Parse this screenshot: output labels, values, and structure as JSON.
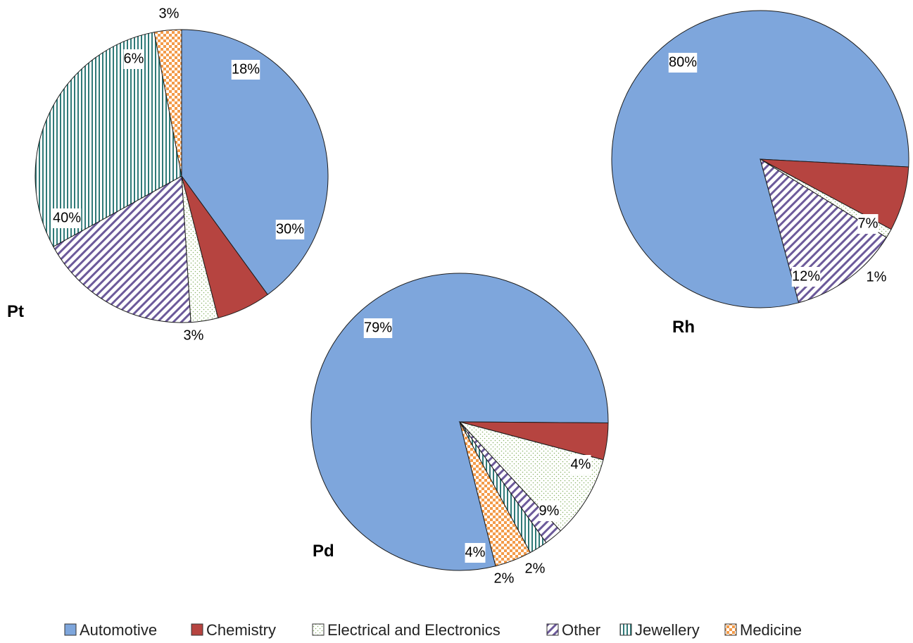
{
  "chart_data": [
    {
      "type": "pie",
      "title": "Pt",
      "slices": [
        {
          "category": "Automotive",
          "value": 40,
          "label": "40%"
        },
        {
          "category": "Chemistry",
          "value": 6,
          "label": "6%"
        },
        {
          "category": "Electrical and Electronics",
          "value": 3,
          "label": "3%"
        },
        {
          "category": "Other",
          "value": 18,
          "label": "18%"
        },
        {
          "category": "Jewellery",
          "value": 30,
          "label": "30%"
        },
        {
          "category": "Medicine",
          "value": 3,
          "label": "3%"
        }
      ]
    },
    {
      "type": "pie",
      "title": "Pd",
      "slices": [
        {
          "category": "Automotive",
          "value": 79,
          "label": "79%"
        },
        {
          "category": "Chemistry",
          "value": 4,
          "label": "4%"
        },
        {
          "category": "Electrical and Electronics",
          "value": 9,
          "label": "9%"
        },
        {
          "category": "Other",
          "value": 2,
          "label": "2%"
        },
        {
          "category": "Jewellery",
          "value": 2,
          "label": "2%"
        },
        {
          "category": "Medicine",
          "value": 4,
          "label": "4%"
        }
      ]
    },
    {
      "type": "pie",
      "title": "Rh",
      "slices": [
        {
          "category": "Automotive",
          "value": 80,
          "label": "80%"
        },
        {
          "category": "Chemistry",
          "value": 7,
          "label": "7%"
        },
        {
          "category": "Electrical and Electronics",
          "value": 1,
          "label": "1%"
        },
        {
          "category": "Other",
          "value": 12,
          "label": "12%"
        }
      ]
    }
  ],
  "legend": {
    "placement": "bottom",
    "items": [
      {
        "category": "Automotive",
        "label": "Automotive",
        "pattern": "dotted-blue"
      },
      {
        "category": "Chemistry",
        "label": "Chemistry",
        "pattern": "solid-red"
      },
      {
        "category": "Electrical and Electronics",
        "label": "Electrical and Electronics",
        "pattern": "dotted-green"
      },
      {
        "category": "Other",
        "label": "Other",
        "pattern": "diagonal-hatch-purple"
      },
      {
        "category": "Jewellery",
        "label": "Jewellery",
        "pattern": "vertical-hatch-teal"
      },
      {
        "category": "Medicine",
        "label": "Medicine",
        "pattern": "orange-dots"
      }
    ]
  },
  "colors": {
    "Automotive": "#7ea6dc",
    "Chemistry": "#b64440",
    "Electrical and Electronics": "#b9d39a",
    "Other": "#7b64a4",
    "Jewellery": "#3d8a86",
    "Medicine": "#f39b4a"
  }
}
